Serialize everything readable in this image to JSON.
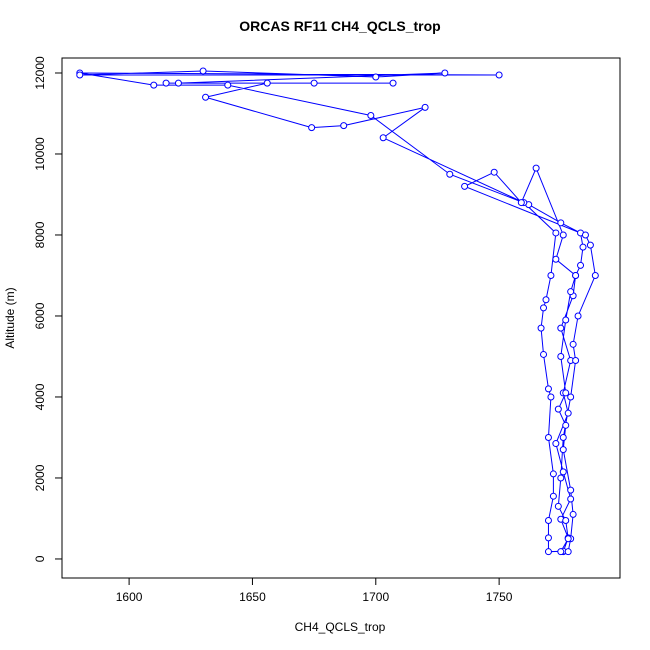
{
  "chart_data": {
    "type": "line",
    "title": "ORCAS RF11 CH4_QCLS_trop",
    "xlabel": "CH4_QCLS_trop",
    "ylabel": "Altitude (m)",
    "color": "#0000ff",
    "x": [
      1776,
      1778,
      1775,
      1779,
      1776,
      1773,
      1778,
      1776,
      1779,
      1775,
      1780,
      1781,
      1783,
      1784,
      1783,
      1775,
      1762,
      1730,
      1698,
      1640,
      1610,
      1580,
      1750,
      1580,
      1630,
      1700,
      1728,
      1620,
      1615,
      1675,
      1707,
      1656,
      1631,
      1674,
      1687,
      1720,
      1703,
      1760,
      1773,
      1771,
      1769,
      1768,
      1767,
      1768,
      1770,
      1771,
      1770,
      1772,
      1772,
      1770,
      1770,
      1770,
      1776,
      1778,
      1779,
      1780,
      1779,
      1776,
      1777,
      1774,
      1777,
      1775,
      1777,
      1779,
      1781,
      1773,
      1776,
      1765,
      1759,
      1748,
      1736,
      1785,
      1787,
      1789,
      1782,
      1780,
      1781,
      1779,
      1776,
      1775,
      1774,
      1777,
      1778,
      1775
    ],
    "values": [
      180,
      520,
      980,
      1480,
      2150,
      2850,
      3600,
      4100,
      4900,
      5700,
      6500,
      7000,
      7250,
      7700,
      8050,
      8300,
      8750,
      9500,
      10950,
      11700,
      11700,
      12000,
      11950,
      11950,
      12050,
      11900,
      12000,
      11750,
      11750,
      11750,
      11750,
      11750,
      11400,
      10650,
      10700,
      11150,
      10400,
      8800,
      8050,
      7000,
      6400,
      6200,
      5700,
      5050,
      4200,
      4000,
      3000,
      2100,
      1550,
      950,
      520,
      180,
      190,
      180,
      500,
      1100,
      1700,
      2700,
      3300,
      3700,
      4100,
      5000,
      5900,
      6600,
      7000,
      7400,
      8000,
      9650,
      8800,
      9550,
      9200,
      8000,
      7750,
      7000,
      6000,
      5300,
      4900,
      4000,
      3000,
      2000,
      1300,
      950,
      500,
      180
    ],
    "xlim": [
      1572.8,
      1799
    ],
    "ylim": [
      -470,
      12370
    ],
    "xticks": [
      1600,
      1650,
      1700,
      1750
    ],
    "yticks": [
      0,
      2000,
      4000,
      6000,
      8000,
      10000,
      12000
    ]
  }
}
